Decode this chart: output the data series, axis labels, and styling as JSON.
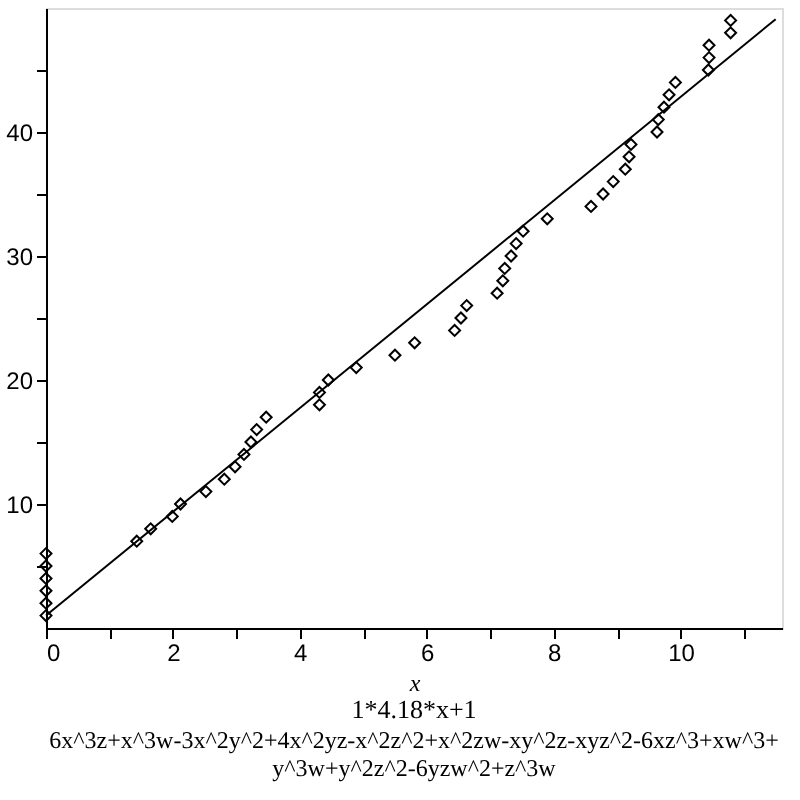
{
  "chart_data": {
    "type": "scatter",
    "title": "1*4.18*x+1",
    "subtitle": "6x^3z+x^3w-3x^2y^2+4x^2yz-x^2z^2+x^2zw-xy^2z-xyz^2-6xz^3+xw^3+y^3w+y^2z^2-6yzw^2+z^3w",
    "xlabel": "x",
    "series": [
      {
        "color": "#000000",
        "marker": "diamond",
        "x": [
          0,
          0,
          0,
          0,
          0,
          0,
          1.43,
          1.65,
          1.99,
          2.12,
          2.52,
          2.81,
          2.98,
          3.12,
          3.23,
          3.32,
          3.47,
          4.31,
          4.31,
          4.45,
          4.89,
          5.5,
          5.81,
          6.44,
          6.54,
          6.63,
          7.11,
          7.2,
          7.23,
          7.33,
          7.41,
          7.52,
          7.9,
          8.59,
          8.78,
          8.94,
          9.13,
          9.19,
          9.22,
          9.63,
          9.65,
          9.74,
          9.82,
          9.92,
          10.44,
          10.45,
          10.45,
          10.79,
          10.79
        ],
        "values": [
          1,
          2,
          3,
          4,
          5,
          6,
          7,
          8,
          9,
          10,
          11,
          12,
          13,
          14,
          15,
          16,
          17,
          18,
          19,
          20,
          21,
          22,
          23,
          24,
          25,
          26,
          27,
          28,
          29,
          30,
          31,
          32,
          33,
          34,
          35,
          36,
          37,
          38,
          39,
          40,
          41,
          42,
          43,
          44,
          45,
          46,
          47,
          48,
          49
        ]
      },
      {
        "type": "line",
        "color": "#000000",
        "line_style": "solid",
        "x": [
          0,
          11.5
        ],
        "values": [
          1,
          49.1
        ]
      }
    ],
    "xlim": [
      0,
      11.6
    ],
    "ylim": [
      0,
      50
    ],
    "xticks": [
      0,
      {
        "value": 1,
        "label": null
      },
      2,
      {
        "value": 3,
        "label": null
      },
      4,
      {
        "value": 5,
        "label": null
      },
      6,
      {
        "value": 7,
        "label": null
      },
      8,
      {
        "value": 9,
        "label": null
      },
      10,
      {
        "value": 11,
        "label": null
      }
    ],
    "yticks": [
      {
        "value": 5,
        "label": null
      },
      10,
      {
        "value": 15,
        "label": null
      },
      20,
      {
        "value": 25,
        "label": null
      },
      30,
      {
        "value": 35,
        "label": null
      },
      40,
      {
        "value": 45,
        "label": null
      }
    ],
    "grid": false
  }
}
